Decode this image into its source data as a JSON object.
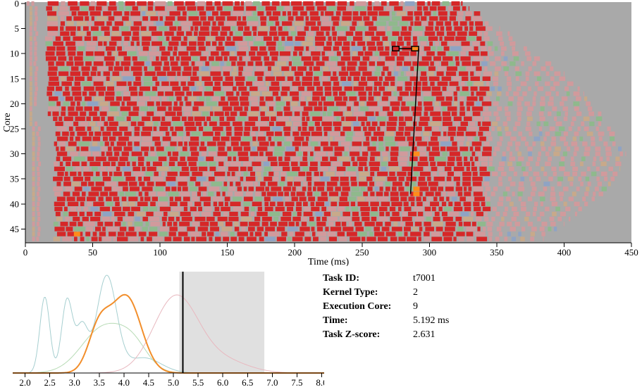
{
  "colors": {
    "background": "#a9a9a9",
    "task_main": "#d62728",
    "task_faded": "#d19a9c",
    "task_green": "#8fb98c",
    "task_tan": "#c8a98a",
    "task_blue": "#8fa3c4",
    "highlight": "#ff8c1a",
    "density_main": "#f28e2b",
    "density_other": [
      "#a6cfd0",
      "#b7dbb5",
      "#e8b8bf"
    ],
    "threshold_band": "#e0e0e0"
  },
  "chart_data": [
    {
      "type": "gantt",
      "xlabel": "Time (ms)",
      "ylabel": "Core",
      "xlim": [
        0,
        450
      ],
      "ylim": [
        0,
        47
      ],
      "x_ticks": [
        0,
        50,
        100,
        150,
        200,
        250,
        300,
        350,
        400,
        450
      ],
      "y_ticks": [
        0,
        5,
        10,
        15,
        20,
        25,
        30,
        35,
        40,
        45
      ],
      "cores": 48,
      "core_end_times_ms": [
        325,
        330,
        338,
        340,
        345,
        352,
        360,
        365,
        370,
        375,
        380,
        385,
        392,
        395,
        400,
        405,
        410,
        412,
        415,
        418,
        420,
        425,
        428,
        430,
        432,
        435,
        438,
        440,
        442,
        445,
        446,
        446,
        445,
        442,
        440,
        438,
        435,
        432,
        430,
        425,
        420,
        415,
        410,
        405,
        400,
        395,
        390,
        385
      ],
      "selected_task": {
        "core": 9,
        "start_ms": 286.8,
        "end_ms": 292.0
      },
      "related_task": {
        "core": 9,
        "start_ms": 272.5,
        "end_ms": 277.5
      },
      "dependency_link": {
        "from_core": 9,
        "from_ms": 292,
        "to_core": 38,
        "to_ms": 286
      },
      "highlighted_tasks": [
        {
          "core": 30,
          "start_ms": 288,
          "end_ms": 293
        },
        {
          "core": 37,
          "start_ms": 288,
          "end_ms": 293
        },
        {
          "core": 38,
          "start_ms": 288,
          "end_ms": 293
        },
        {
          "core": 46,
          "start_ms": 36,
          "end_ms": 41
        }
      ]
    },
    {
      "type": "density",
      "xlim": [
        1.75,
        8.05
      ],
      "x_ticks": [
        "2.0",
        "2.5",
        "3.0",
        "3.5",
        "4.0",
        "4.5",
        "5.0",
        "5.5",
        "6.0",
        "6.5",
        "7.0",
        "7.5",
        "8.0"
      ],
      "selected_value": 5.192,
      "threshold_band": [
        5.12,
        6.84
      ],
      "series": [
        {
          "role": "selected-kernel",
          "peaks": [
            [
              3.5,
              0.43,
              0.22
            ],
            [
              4.05,
              0.75,
              0.3
            ]
          ]
        },
        {
          "role": "other-kernel",
          "peaks": [
            [
              2.4,
              0.75,
              0.1
            ],
            [
              2.85,
              0.72,
              0.11
            ],
            [
              3.15,
              0.45,
              0.12
            ],
            [
              3.65,
              0.95,
              0.2
            ],
            [
              4.4,
              0.15,
              0.35
            ]
          ]
        },
        {
          "role": "other-kernel",
          "peaks": [
            [
              3.6,
              0.45,
              0.45
            ],
            [
              4.2,
              0.2,
              0.3
            ]
          ]
        },
        {
          "role": "other-kernel",
          "peaks": [
            [
              5.05,
              0.75,
              0.45
            ],
            [
              6.0,
              0.12,
              0.5
            ]
          ]
        }
      ]
    }
  ],
  "task_info": {
    "labels": {
      "id": "Task ID:",
      "kernel": "Kernel Type:",
      "core": "Execution Core:",
      "time": "Time:",
      "zscore": "Task Z-score:"
    },
    "values": {
      "id": "t7001",
      "kernel": "2",
      "core": "9",
      "time": "5.192 ms",
      "zscore": "2.631"
    }
  }
}
